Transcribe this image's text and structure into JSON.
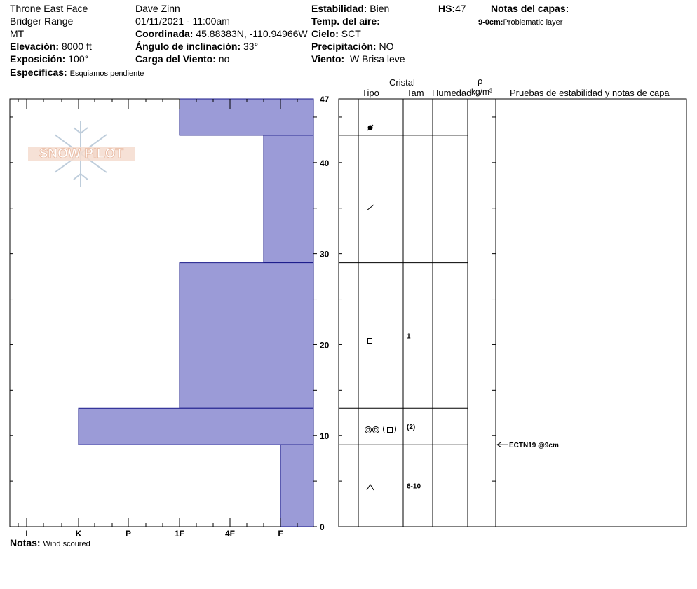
{
  "header": {
    "location": "Throne East Face",
    "range": "Bridger Range",
    "state": "MT",
    "observer": "Dave Zinn",
    "datetime": "01/11/2021 - 11:00am",
    "elevation_label": "Elevación:",
    "elevation_value": "8000 ft",
    "aspect_label": "Exposición:",
    "aspect_value": "100°",
    "coords_label": "Coordinada:",
    "coords_value": "45.88383N, -110.94966W",
    "slope_label": "Ángulo de inclinación:",
    "slope_value": "33°",
    "wind_load_label": "Carga del Viento:",
    "wind_load_value": "no",
    "stability_label": "Estabilidad:",
    "stability_value": "Bien",
    "air_temp_label": "Temp. del aire:",
    "sky_label": "Cielo:",
    "sky_value": "SCT",
    "precip_label": "Precipitación:",
    "precip_value": "NO",
    "wind_label": "Viento:",
    "wind_value": "W Brisa leve",
    "hs_label": "HS:",
    "hs_value": "47",
    "layer_notes_label": "Notas del capas:",
    "layer_note": "9-0cm:",
    "layer_note_text": "Problematic layer",
    "specifics_label": "Especificas:",
    "specifics_value": "Esquiamos pendiente",
    "notes_label": "Notas:",
    "notes_value": "Wind scoured"
  },
  "logo": {
    "text": "SNOW PILOT"
  },
  "columns": {
    "crystal": "Cristal",
    "type": "Tipo",
    "size": "Tam",
    "moisture": "Humedad",
    "rho": "ρ",
    "density_unit": "kg/m³",
    "tests": "Pruebas de estabilidad y notas de capa"
  },
  "chart_data": {
    "type": "bar",
    "description_axis": "hardness profile vs. snow height",
    "x_ticks": [
      "I",
      "K",
      "P",
      "1F",
      "4F",
      "F"
    ],
    "y_ticks": [
      0,
      10,
      20,
      30,
      40,
      47
    ],
    "y_range": [
      0,
      47
    ],
    "bar_color": "#9b9bd7",
    "layers": [
      {
        "top": 47,
        "bottom": 43,
        "hardness": "1F"
      },
      {
        "top": 43,
        "bottom": 29,
        "hardness": "4F"
      },
      {
        "top": 29,
        "bottom": 13,
        "hardness": "1F"
      },
      {
        "top": 13,
        "bottom": 9,
        "hardness": "K"
      },
      {
        "top": 9,
        "bottom": 0,
        "hardness": "F"
      }
    ],
    "crystals": [
      {
        "depth": 45,
        "size": ""
      },
      {
        "depth": 36,
        "size": ""
      },
      {
        "depth": 21,
        "size": "1"
      },
      {
        "depth": 11,
        "size": "(2)"
      },
      {
        "depth": 4.5,
        "size": "6-10"
      }
    ],
    "tests": [
      {
        "depth": 9,
        "text": "ECTN19 @9cm"
      }
    ]
  }
}
